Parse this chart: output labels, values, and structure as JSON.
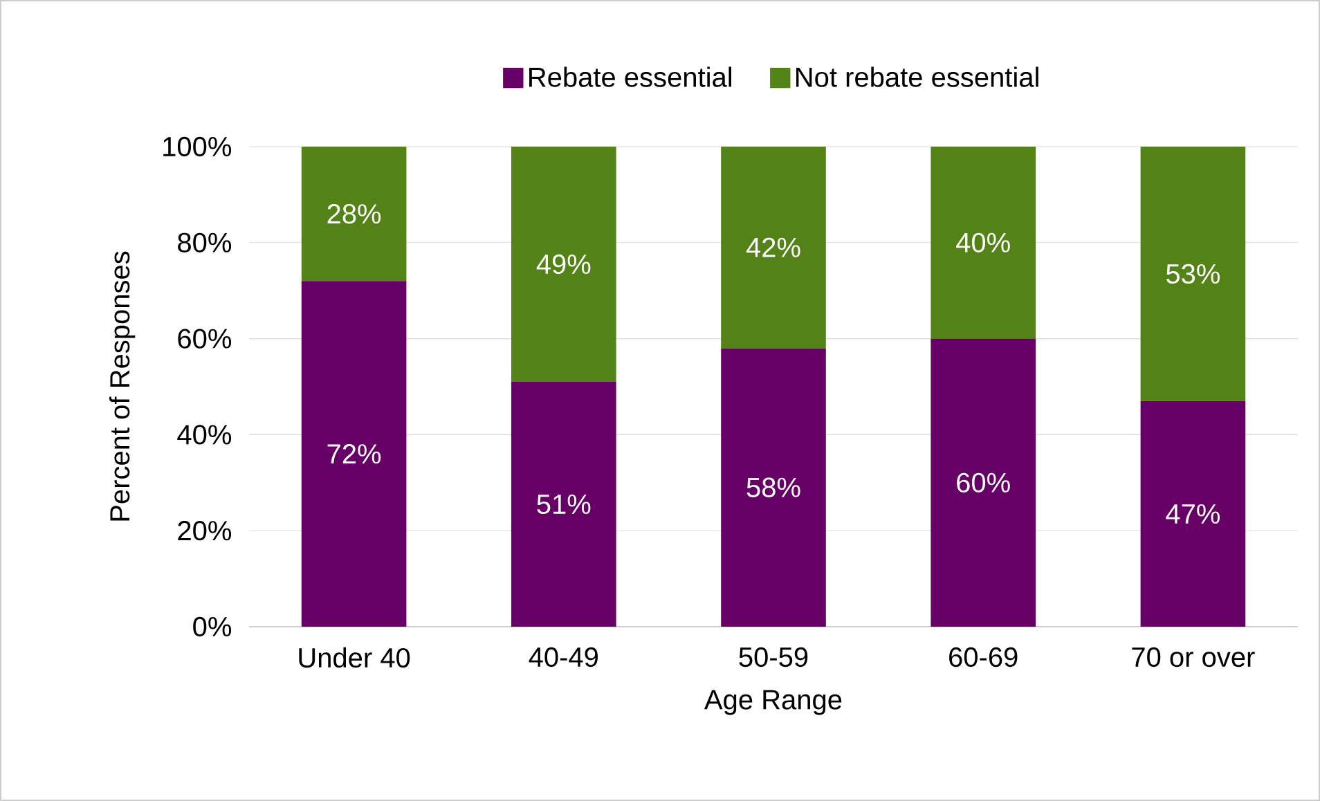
{
  "chart_data": {
    "type": "bar",
    "stacked": true,
    "xlabel": "Age Range",
    "ylabel": "Percent of Responses",
    "categories": [
      "Under 40",
      "40-49",
      "50-59",
      "60-69",
      "70 or over"
    ],
    "series": [
      {
        "name": "Rebate essential",
        "color": "#660066",
        "values": [
          72,
          51,
          58,
          60,
          47
        ],
        "value_labels": [
          "72%",
          "51%",
          "58%",
          "60%",
          "47%"
        ]
      },
      {
        "name": "Not rebate essential",
        "color": "#538216",
        "values": [
          28,
          49,
          42,
          40,
          53
        ],
        "value_labels": [
          "28%",
          "49%",
          "42%",
          "40%",
          "53%"
        ]
      }
    ],
    "ylim": [
      0,
      100
    ],
    "yticks": [
      {
        "value": 0,
        "label": "0%"
      },
      {
        "value": 20,
        "label": "20%"
      },
      {
        "value": 40,
        "label": "40%"
      },
      {
        "value": 60,
        "label": "60%"
      },
      {
        "value": 80,
        "label": "80%"
      },
      {
        "value": 100,
        "label": "100%"
      }
    ],
    "grid": "y",
    "legend": "top"
  }
}
